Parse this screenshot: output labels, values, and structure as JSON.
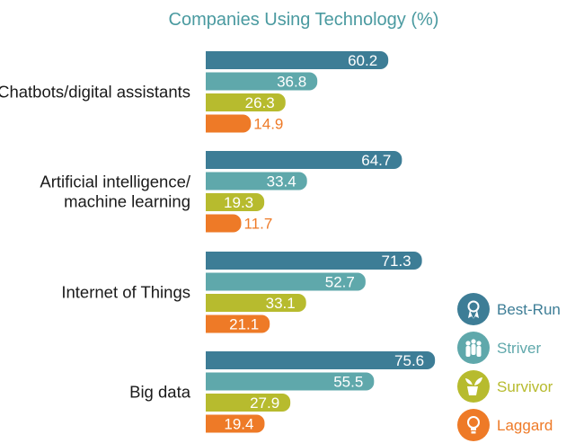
{
  "chart_data": {
    "type": "bar",
    "orientation": "horizontal",
    "title": "Companies Using Technology (%)",
    "categories": [
      [
        "Chatbots/digital assistants"
      ],
      [
        "Artificial intelligence/",
        "machine learning"
      ],
      [
        "Internet of Things"
      ],
      [
        "Big data"
      ]
    ],
    "series": [
      {
        "name": "Best-Run",
        "color": "#3d7d96",
        "label_color": "#ffffff",
        "icon": "award-ribbon-icon",
        "values": [
          60.2,
          64.7,
          71.3,
          75.6
        ]
      },
      {
        "name": "Striver",
        "color": "#5fa8ab",
        "label_color": "#ffffff",
        "icon": "people-icon",
        "values": [
          36.8,
          33.4,
          52.7,
          55.5
        ]
      },
      {
        "name": "Survivor",
        "color": "#b7bb2e",
        "label_color": "#ffffff",
        "icon": "plant-pot-icon",
        "values": [
          26.3,
          19.3,
          33.1,
          27.9
        ]
      },
      {
        "name": "Laggard",
        "color": "#ee7a27",
        "label_color": "#ffffff",
        "label_color_outside": "#ee7a27",
        "icon": "lightbulb-icon",
        "values": [
          14.9,
          11.7,
          21.1,
          19.4
        ]
      }
    ],
    "xlim": [
      0,
      100
    ],
    "legend_position": "right"
  }
}
